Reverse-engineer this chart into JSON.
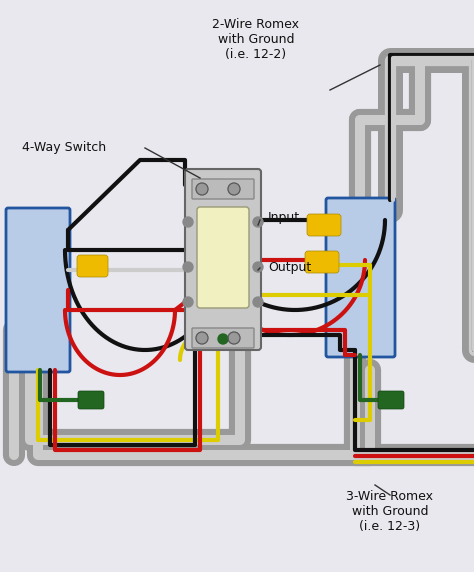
{
  "bg_color": "#e8e8ee",
  "labels": {
    "switch_label": "4-Way Switch",
    "romex_2wire": "2-Wire Romex\nwith Ground\n(i.e. 12-2)",
    "romex_3wire": "3-Wire Romex\nwith Ground\n(i.e. 12-3)",
    "input_label": "Input",
    "output_label": "Output"
  },
  "colors": {
    "box_fill": "#b8cce8",
    "box_edge": "#2255a0",
    "conduit_outer": "#aaaaaa",
    "conduit_inner": "#cccccc",
    "wire_black": "#111111",
    "wire_red": "#cc1111",
    "wire_white": "#cccccc",
    "wire_yellow": "#ddcc00",
    "wire_green": "#226622",
    "switch_body": "#c8c8c8",
    "switch_toggle": "#f0f0c0",
    "text_color": "#111111"
  }
}
